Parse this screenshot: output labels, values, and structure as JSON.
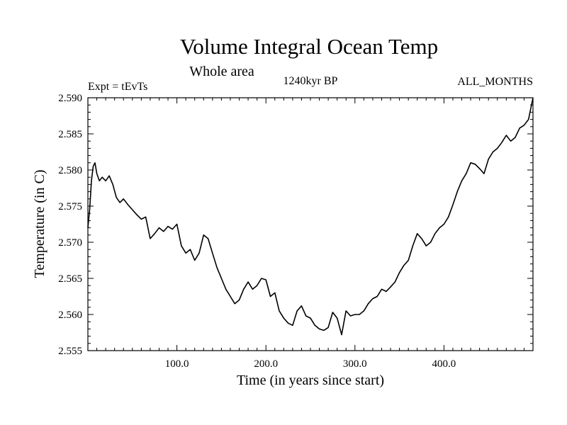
{
  "chart_data": {
    "type": "line",
    "title": "Volume Integral Ocean Temp",
    "subtitle": "Whole area",
    "experiment_label": "Expt = tEvTs",
    "period_label": "1240kyr BP",
    "months_label": "ALL_MONTHS",
    "xlabel": "Time (in years since start)",
    "ylabel": "Temperature (in C)",
    "xlim": [
      0,
      500
    ],
    "ylim": [
      2.555,
      2.59
    ],
    "x_ticks": [
      100,
      200,
      300,
      400
    ],
    "x_tick_labels": [
      "100.0",
      "200.0",
      "300.0",
      "400.0"
    ],
    "y_ticks": [
      2.555,
      2.56,
      2.565,
      2.57,
      2.575,
      2.58,
      2.585,
      2.59
    ],
    "y_tick_labels": [
      "2.555",
      "2.560",
      "2.565",
      "2.570",
      "2.575",
      "2.580",
      "2.585",
      "2.590"
    ],
    "grid": false,
    "series": [
      {
        "name": "Volume Integral Ocean Temp",
        "color": "#000000",
        "x": [
          0,
          2,
          4,
          6,
          8,
          10,
          13,
          16,
          20,
          24,
          28,
          32,
          36,
          40,
          45,
          50,
          55,
          60,
          65,
          70,
          75,
          80,
          85,
          90,
          95,
          100,
          105,
          110,
          115,
          120,
          125,
          130,
          135,
          140,
          145,
          150,
          155,
          160,
          165,
          170,
          175,
          180,
          185,
          190,
          195,
          200,
          205,
          210,
          215,
          220,
          225,
          230,
          235,
          240,
          245,
          250,
          255,
          260,
          265,
          270,
          275,
          280,
          285,
          290,
          295,
          300,
          305,
          310,
          315,
          320,
          325,
          330,
          335,
          340,
          345,
          350,
          355,
          360,
          365,
          370,
          375,
          380,
          385,
          390,
          395,
          400,
          405,
          410,
          415,
          420,
          425,
          430,
          435,
          440,
          445,
          450,
          455,
          460,
          465,
          470,
          475,
          480,
          485,
          490,
          495,
          500
        ],
        "values": [
          2.572,
          2.5745,
          2.5785,
          2.5805,
          2.581,
          2.5795,
          2.5785,
          2.579,
          2.5785,
          2.5792,
          2.578,
          2.5762,
          2.5755,
          2.576,
          2.5752,
          2.5745,
          2.5738,
          2.5732,
          2.5735,
          2.5705,
          2.5712,
          2.572,
          2.5715,
          2.5722,
          2.5718,
          2.5725,
          2.5695,
          2.5685,
          2.569,
          2.5675,
          2.5685,
          2.571,
          2.5705,
          2.5685,
          2.5665,
          2.565,
          2.5635,
          2.5625,
          2.5615,
          2.562,
          2.5635,
          2.5645,
          2.5635,
          2.564,
          2.565,
          2.5648,
          2.5625,
          2.563,
          2.5605,
          2.5595,
          2.5588,
          2.5585,
          2.5605,
          2.5612,
          2.5598,
          2.5595,
          2.5585,
          2.558,
          2.5578,
          2.5582,
          2.5603,
          2.5595,
          2.5572,
          2.5605,
          2.5598,
          2.56,
          2.56,
          2.5605,
          2.5615,
          2.5622,
          2.5625,
          2.5635,
          2.5632,
          2.5638,
          2.5645,
          2.5658,
          2.5668,
          2.5675,
          2.5695,
          2.5712,
          2.5705,
          2.5695,
          2.57,
          2.5712,
          2.572,
          2.5725,
          2.5735,
          2.5752,
          2.577,
          2.5785,
          2.5795,
          2.581,
          2.5808,
          2.5802,
          2.5795,
          2.5815,
          2.5825,
          2.583,
          2.5838,
          2.5848,
          2.584,
          2.5845,
          2.5858,
          2.5862,
          2.587,
          2.59
        ]
      }
    ]
  }
}
